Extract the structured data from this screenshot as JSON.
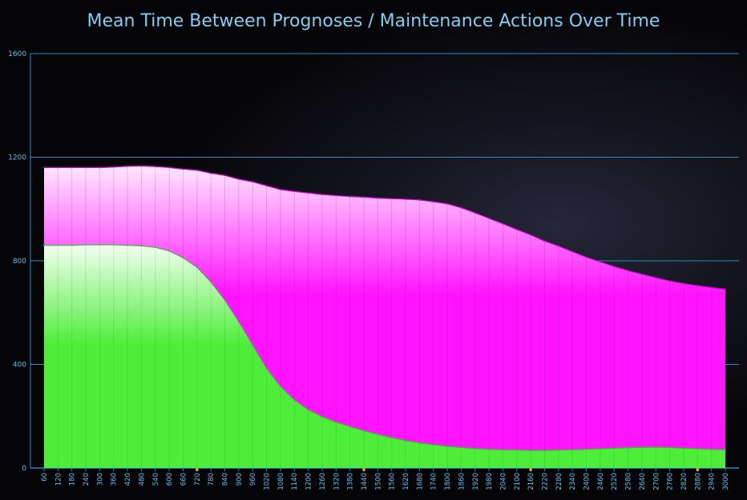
{
  "chart_data": {
    "type": "area",
    "title": "Mean Time Between Prognoses / Maintenance Actions Over Time",
    "xlabel": "",
    "ylabel": "",
    "ylim": [
      0,
      1600
    ],
    "yticks": [
      0,
      400,
      800,
      1200,
      1600
    ],
    "grid": true,
    "stacked": true,
    "x": [
      60,
      120,
      180,
      240,
      300,
      360,
      420,
      480,
      540,
      600,
      660,
      720,
      780,
      840,
      900,
      960,
      1020,
      1080,
      1140,
      1200,
      1260,
      1320,
      1380,
      1440,
      1500,
      1560,
      1620,
      1680,
      1740,
      1800,
      1860,
      1920,
      1980,
      2040,
      2100,
      2160,
      2220,
      2280,
      2340,
      2400,
      2460,
      2520,
      2580,
      2640,
      2700,
      2760,
      2820,
      2880,
      2940,
      3000
    ],
    "highlighted_x": [
      720,
      1440,
      2160,
      2880
    ],
    "series": [
      {
        "color": "#4ded3a",
        "values": [
          860,
          860,
          860,
          862,
          862,
          862,
          860,
          858,
          852,
          838,
          812,
          775,
          718,
          648,
          565,
          475,
          385,
          315,
          263,
          225,
          198,
          177,
          160,
          144,
          130,
          117,
          106,
          97,
          90,
          84,
          79,
          75,
          72,
          70,
          69,
          68,
          68,
          69,
          70,
          72,
          74,
          76,
          78,
          80,
          80,
          79,
          76,
          74,
          72,
          70
        ]
      },
      {
        "color": "#ff14ff",
        "values": [
          300,
          300,
          300,
          298,
          298,
          300,
          305,
          308,
          312,
          322,
          342,
          375,
          420,
          482,
          550,
          630,
          705,
          760,
          805,
          837,
          858,
          875,
          888,
          902,
          912,
          923,
          932,
          938,
          938,
          936,
          926,
          910,
          892,
          873,
          852,
          832,
          808,
          788,
          765,
          742,
          722,
          702,
          684,
          668,
          655,
          643,
          636,
          630,
          625,
          620
        ]
      }
    ]
  }
}
